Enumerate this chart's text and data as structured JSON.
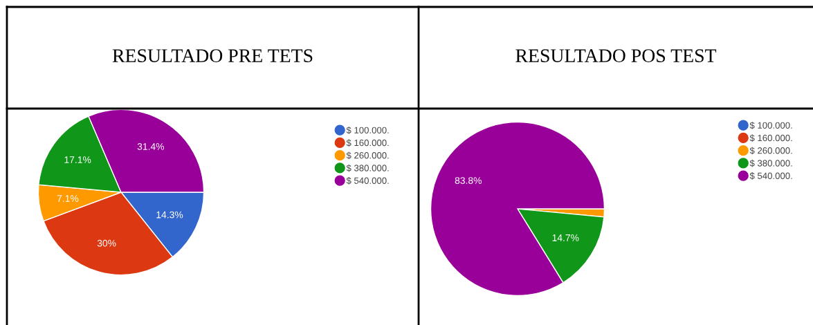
{
  "chart_data": [
    {
      "type": "pie",
      "title": "RESULTADO PRE TETS",
      "categories": [
        "$ 100.000.",
        "$ 160.000.",
        "$ 260.000.",
        "$ 380.000.",
        "$ 540.000."
      ],
      "values": [
        14.3,
        30,
        7.1,
        17.1,
        31.4
      ],
      "colors": [
        "#3366cc",
        "#dc3912",
        "#ff9900",
        "#109618",
        "#990099"
      ],
      "value_labels": [
        "14.3%",
        "30%",
        "7.1%",
        "17.1%",
        "31.4%"
      ],
      "legend": "right"
    },
    {
      "type": "pie",
      "title": "RESULTADO POS TEST",
      "categories": [
        "$ 100.000.",
        "$ 160.000.",
        "$ 260.000.",
        "$ 380.000.",
        "$ 540.000."
      ],
      "values": [
        0,
        0,
        1.5,
        14.7,
        83.8
      ],
      "colors": [
        "#3366cc",
        "#dc3912",
        "#ff9900",
        "#109618",
        "#990099"
      ],
      "value_labels": [
        null,
        null,
        null,
        "14.7%",
        "83.8%"
      ],
      "legend": "right"
    }
  ]
}
